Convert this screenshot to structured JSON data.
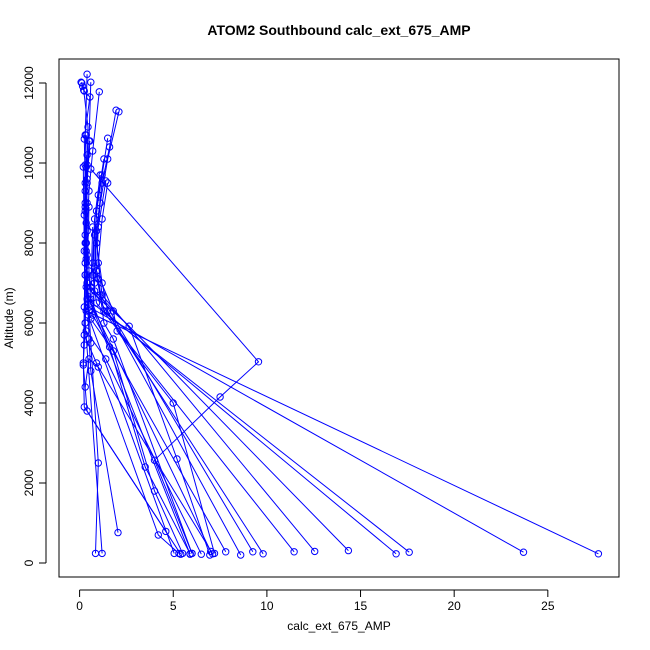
{
  "chart_data": {
    "type": "line",
    "title": "ATOM2 Southbound calc_ext_675_AMP",
    "xlabel": "calc_ext_675_AMP",
    "ylabel": "Altitude (m)",
    "xlim": [
      -1.1,
      28.8
    ],
    "ylim": [
      -350,
      12600
    ],
    "xticks": [
      0,
      5,
      10,
      15,
      20,
      25
    ],
    "yticks": [
      0,
      2000,
      4000,
      6000,
      8000,
      10000,
      12000
    ],
    "grid": false,
    "color": "#0000ff",
    "marker": "open-circle",
    "series": [
      {
        "values": [
          [
            0.08,
            12020
          ],
          [
            0.16,
            11920
          ],
          [
            0.22,
            11820
          ],
          [
            0.45,
            10900
          ],
          [
            0.4,
            9950
          ],
          [
            0.3,
            9000
          ],
          [
            0.35,
            8000
          ],
          [
            0.4,
            7000
          ],
          [
            0.5,
            6300
          ],
          [
            0.6,
            5500
          ],
          [
            1.0,
            2500
          ],
          [
            0.85,
            240
          ]
        ]
      },
      {
        "values": [
          [
            0.12,
            12000
          ],
          [
            0.25,
            11800
          ],
          [
            0.55,
            11650
          ],
          [
            0.25,
            10600
          ],
          [
            0.3,
            9500
          ],
          [
            0.3,
            8800
          ],
          [
            0.4,
            7700
          ],
          [
            0.35,
            6900
          ],
          [
            0.3,
            6000
          ],
          [
            1.2,
            240
          ]
        ]
      },
      {
        "values": [
          [
            0.4,
            12220
          ],
          [
            0.3,
            10700
          ],
          [
            0.35,
            9900
          ],
          [
            0.4,
            9000
          ],
          [
            0.35,
            8000
          ],
          [
            0.4,
            7000
          ],
          [
            0.45,
            6200
          ],
          [
            5.05,
            240
          ]
        ]
      },
      {
        "values": [
          [
            0.6,
            12020
          ],
          [
            0.5,
            10550
          ],
          [
            0.4,
            9600
          ],
          [
            0.3,
            8000
          ],
          [
            0.3,
            7200
          ],
          [
            0.5,
            6600
          ],
          [
            5.9,
            220
          ]
        ]
      },
      {
        "values": [
          [
            1.05,
            11780
          ],
          [
            0.7,
            10300
          ],
          [
            0.5,
            9300
          ],
          [
            0.4,
            8300
          ],
          [
            0.5,
            7300
          ],
          [
            0.6,
            6500
          ],
          [
            7.0,
            290
          ]
        ]
      },
      {
        "values": [
          [
            1.95,
            11320
          ],
          [
            1.6,
            10400
          ],
          [
            1.2,
            9500
          ],
          [
            0.9,
            8300
          ],
          [
            0.8,
            7000
          ],
          [
            0.7,
            6200
          ],
          [
            7.8,
            280
          ]
        ]
      },
      {
        "values": [
          [
            2.1,
            11280
          ],
          [
            1.5,
            10100
          ],
          [
            1.1,
            9000
          ],
          [
            0.9,
            8000
          ],
          [
            1.2,
            7000
          ],
          [
            1.5,
            6300
          ],
          [
            8.6,
            200
          ]
        ]
      },
      {
        "values": [
          [
            1.5,
            10620
          ],
          [
            1.2,
            9700
          ],
          [
            0.9,
            8800
          ],
          [
            0.8,
            7400
          ],
          [
            1.1,
            6700
          ],
          [
            9.25,
            280
          ]
        ]
      },
      {
        "values": [
          [
            0.55,
            10550
          ],
          [
            0.4,
            9500
          ],
          [
            0.35,
            8500
          ],
          [
            0.3,
            7500
          ],
          [
            0.6,
            6900
          ],
          [
            9.8,
            230
          ]
        ]
      },
      {
        "values": [
          [
            1.3,
            10100
          ],
          [
            1.0,
            9200
          ],
          [
            0.8,
            8200
          ],
          [
            0.7,
            7200
          ],
          [
            0.9,
            6500
          ],
          [
            11.45,
            280
          ]
        ]
      },
      {
        "values": [
          [
            1.5,
            9500
          ],
          [
            1.2,
            8600
          ],
          [
            1.0,
            7500
          ],
          [
            1.2,
            6700
          ],
          [
            12.55,
            290
          ]
        ]
      },
      {
        "values": [
          [
            1.1,
            9700
          ],
          [
            0.8,
            8600
          ],
          [
            0.7,
            7500
          ],
          [
            0.8,
            6800
          ],
          [
            14.35,
            310
          ]
        ]
      },
      {
        "values": [
          [
            1.4,
            9550
          ],
          [
            1.0,
            8400
          ],
          [
            0.9,
            7300
          ],
          [
            1.3,
            6300
          ],
          [
            16.9,
            230
          ]
        ]
      },
      {
        "values": [
          [
            0.35,
            10700
          ],
          [
            0.3,
            9300
          ],
          [
            0.35,
            7800
          ],
          [
            0.4,
            6600
          ],
          [
            17.6,
            270
          ]
        ]
      },
      {
        "values": [
          [
            0.4,
            10200
          ],
          [
            0.3,
            8900
          ],
          [
            0.35,
            7600
          ],
          [
            0.5,
            6400
          ],
          [
            23.7,
            270
          ]
        ]
      },
      {
        "values": [
          [
            0.3,
            9950
          ],
          [
            0.25,
            8700
          ],
          [
            0.3,
            7200
          ],
          [
            0.35,
            6300
          ],
          [
            27.7,
            230
          ]
        ]
      },
      {
        "values": [
          [
            0.6,
            9850
          ],
          [
            9.55,
            5030
          ],
          [
            7.5,
            4150
          ],
          [
            4.0,
            2570
          ],
          [
            6.0,
            240
          ]
        ]
      },
      {
        "values": [
          [
            0.2,
            9900
          ],
          [
            0.25,
            7800
          ],
          [
            0.3,
            6000
          ],
          [
            0.25,
            5450
          ],
          [
            0.2,
            5000
          ],
          [
            0.25,
            3900
          ],
          [
            5.4,
            220
          ]
        ]
      },
      {
        "values": [
          [
            0.5,
            8900
          ],
          [
            0.4,
            7200
          ],
          [
            0.5,
            5600
          ],
          [
            0.6,
            4800
          ],
          [
            2.05,
            760
          ]
        ]
      },
      {
        "values": [
          [
            0.3,
            8200
          ],
          [
            0.25,
            6400
          ],
          [
            0.2,
            4950
          ],
          [
            0.4,
            3800
          ],
          [
            4.6,
            790
          ]
        ]
      },
      {
        "values": [
          [
            0.7,
            8400
          ],
          [
            0.6,
            6800
          ],
          [
            2.65,
            5920
          ],
          [
            5.2,
            2600
          ],
          [
            6.95,
            200
          ]
        ]
      },
      {
        "values": [
          [
            0.9,
            7300
          ],
          [
            1.8,
            6300
          ],
          [
            2.0,
            5800
          ],
          [
            5.0,
            4000
          ],
          [
            7.2,
            240
          ]
        ]
      },
      {
        "values": [
          [
            1.0,
            7100
          ],
          [
            1.3,
            6000
          ],
          [
            1.8,
            5600
          ],
          [
            6.0,
            240
          ]
        ]
      },
      {
        "values": [
          [
            0.6,
            6100
          ],
          [
            1.8,
            5300
          ],
          [
            4.0,
            1800
          ],
          [
            5.5,
            240
          ]
        ]
      },
      {
        "values": [
          [
            0.35,
            5800
          ],
          [
            1.4,
            5100
          ],
          [
            6.5,
            220
          ]
        ]
      },
      {
        "values": [
          [
            0.3,
            4400
          ],
          [
            0.5,
            5100
          ],
          [
            1.0,
            4900
          ],
          [
            7.1,
            230
          ]
        ]
      },
      {
        "values": [
          [
            0.6,
            6600
          ],
          [
            1.6,
            5400
          ],
          [
            3.5,
            2400
          ],
          [
            5.9,
            230
          ]
        ]
      },
      {
        "values": [
          [
            0.25,
            5700
          ],
          [
            0.9,
            5000
          ],
          [
            4.2,
            700
          ],
          [
            5.3,
            240
          ]
        ]
      }
    ]
  }
}
